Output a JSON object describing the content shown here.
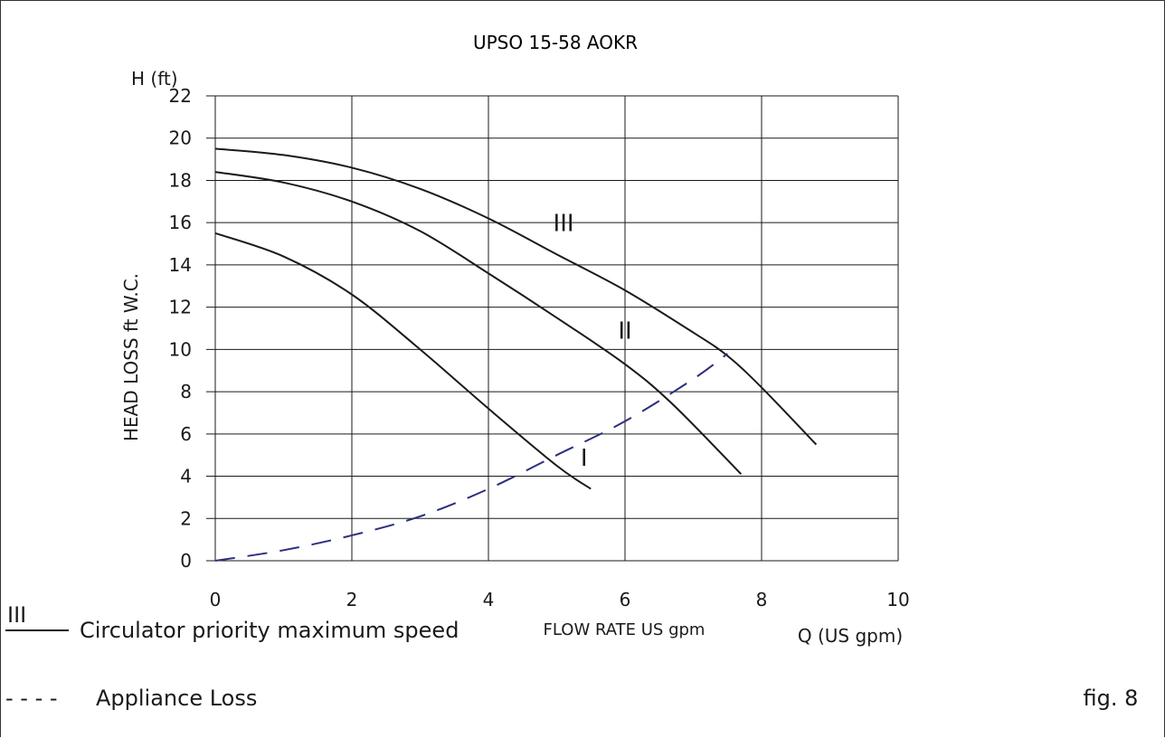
{
  "chart_data": {
    "type": "line",
    "title": "UPSO 15-58 AOKR",
    "y_unit_label": "H (ft)",
    "ylabel": "HEAD LOSS ft W.C.",
    "xlabel": "FLOW RATE US gpm",
    "x_unit_label": "Q (US gpm)",
    "xlim": [
      0,
      10
    ],
    "ylim": [
      0,
      22
    ],
    "x_ticks": [
      "0",
      "2",
      "4",
      "6",
      "8",
      "10"
    ],
    "y_ticks": [
      "0",
      "2",
      "4",
      "6",
      "8",
      "10",
      "12",
      "14",
      "16",
      "18",
      "20",
      "22"
    ],
    "grid": true,
    "series": [
      {
        "name": "III",
        "style": "solid",
        "color": "#1a1a1a",
        "x": [
          0,
          1,
          2,
          3,
          4,
          5,
          6,
          7,
          7.5,
          8,
          8.8
        ],
        "y": [
          19.5,
          19.2,
          18.6,
          17.6,
          16.2,
          14.5,
          12.8,
          10.8,
          9.7,
          8.2,
          5.5
        ]
      },
      {
        "name": "II",
        "style": "solid",
        "color": "#1a1a1a",
        "x": [
          0,
          1,
          2,
          3,
          4,
          5,
          6,
          6.7,
          7.7
        ],
        "y": [
          18.4,
          17.9,
          17.0,
          15.6,
          13.6,
          11.5,
          9.3,
          7.4,
          4.1
        ],
        "label_position": [
          6,
          10.5
        ]
      },
      {
        "name": "I",
        "style": "solid",
        "color": "#1a1a1a",
        "x": [
          0,
          1,
          2,
          3,
          4,
          5,
          5.5
        ],
        "y": [
          15.5,
          14.4,
          12.6,
          10.0,
          7.2,
          4.5,
          3.4
        ],
        "label_position": [
          5.4,
          4.5
        ]
      },
      {
        "name": "Appliance Loss",
        "style": "dashed",
        "color": "#2b2f7f",
        "x": [
          0,
          1,
          2,
          3,
          4,
          5,
          6,
          7,
          7.5
        ],
        "y": [
          0,
          0.5,
          1.2,
          2.1,
          3.4,
          5.0,
          6.6,
          8.6,
          9.8
        ]
      }
    ]
  },
  "legend": {
    "solid_marker": "III",
    "solid_label": "Circulator priority maximum speed",
    "dashed_marker": "- - - -",
    "dashed_label": "Appliance Loss"
  },
  "figure_label": "fig. 8"
}
